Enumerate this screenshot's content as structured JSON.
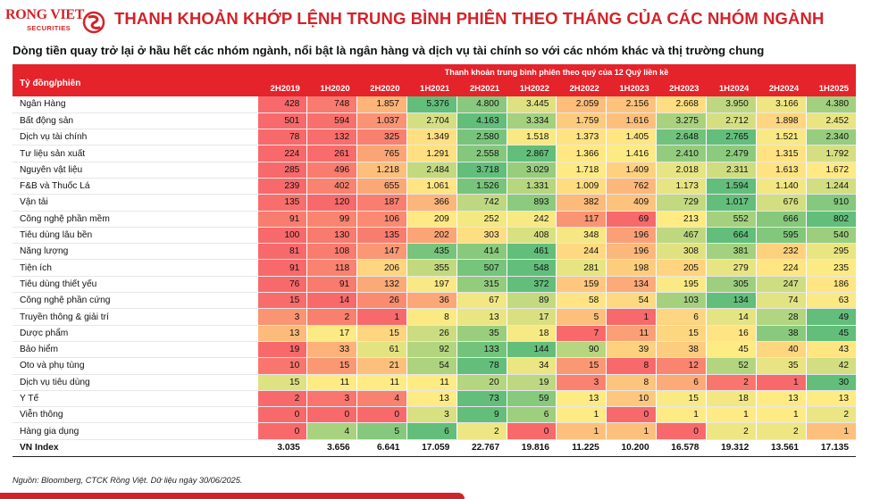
{
  "brand": {
    "logo_text": "RONG VIET",
    "logo_sub": "SECURITIES",
    "brand_color": "#d2232a"
  },
  "title": "THANH KHOẢN KHỚP LỆNH TRUNG BÌNH PHIÊN THEO THÁNG CỦA CÁC NHÓM NGÀNH",
  "subtitle": "Dòng tiền quay trở lại ở hầu hết các nhóm ngành, nổi bật là ngân hàng và dịch vụ tài chính so với các nhóm khác và thị trường chung",
  "source": "Nguồn: Bloomberg, CTCK Rồng Việt. Dữ liệu ngày 30/06/2025.",
  "chart_data": {
    "type": "heatmap",
    "row_header": "Tỷ đồng/phiên",
    "column_group_header": "Thanh khoản trung bình phiên theo quý của 12 Quý liền kề",
    "columns": [
      "2H2019",
      "1H2020",
      "2H2020",
      "1H2021",
      "2H2021",
      "1H2022",
      "2H2022",
      "1H2023",
      "2H2023",
      "1H2024",
      "2H2024",
      "1H2025"
    ],
    "rows": [
      {
        "name": "Ngân Hàng",
        "values": [
          428,
          748,
          1857,
          5376,
          4800,
          3445,
          2059,
          2156,
          2668,
          3950,
          3166,
          4380
        ],
        "labels": [
          "428",
          "748",
          "1.857",
          "5.376",
          "4.800",
          "3.445",
          "2.059",
          "2.156",
          "2.668",
          "3.950",
          "3.166",
          "4.380"
        ]
      },
      {
        "name": "Bất động sản",
        "values": [
          501,
          594,
          1037,
          2704,
          4163,
          3334,
          1759,
          1616,
          3275,
          2712,
          1898,
          2452
        ],
        "labels": [
          "501",
          "594",
          "1.037",
          "2.704",
          "4.163",
          "3.334",
          "1.759",
          "1.616",
          "3.275",
          "2.712",
          "1.898",
          "2.452"
        ]
      },
      {
        "name": "Dịch vụ tài chính",
        "values": [
          78,
          132,
          325,
          1349,
          2580,
          1518,
          1373,
          1405,
          2648,
          2765,
          1521,
          2340
        ],
        "labels": [
          "78",
          "132",
          "325",
          "1.349",
          "2.580",
          "1.518",
          "1.373",
          "1.405",
          "2.648",
          "2.765",
          "1.521",
          "2.340"
        ]
      },
      {
        "name": "Tư liệu sản xuất",
        "values": [
          224,
          261,
          765,
          1291,
          2558,
          2867,
          1366,
          1416,
          2410,
          2479,
          1315,
          1792
        ],
        "labels": [
          "224",
          "261",
          "765",
          "1.291",
          "2.558",
          "2.867",
          "1.366",
          "1.416",
          "2.410",
          "2.479",
          "1.315",
          "1.792"
        ]
      },
      {
        "name": "Nguyên vật liệu",
        "values": [
          285,
          496,
          1218,
          2484,
          3718,
          3029,
          1718,
          1409,
          2018,
          2311,
          1613,
          1672
        ],
        "labels": [
          "285",
          "496",
          "1.218",
          "2.484",
          "3.718",
          "3.029",
          "1.718",
          "1.409",
          "2.018",
          "2.311",
          "1.613",
          "1.672"
        ]
      },
      {
        "name": "F&B và Thuốc Lá",
        "values": [
          239,
          402,
          655,
          1061,
          1526,
          1331,
          1009,
          762,
          1173,
          1594,
          1140,
          1244
        ],
        "labels": [
          "239",
          "402",
          "655",
          "1.061",
          "1.526",
          "1.331",
          "1.009",
          "762",
          "1.173",
          "1.594",
          "1.140",
          "1.244"
        ]
      },
      {
        "name": "Vận tải",
        "values": [
          135,
          120,
          187,
          366,
          742,
          893,
          382,
          409,
          729,
          1017,
          676,
          910
        ],
        "labels": [
          "135",
          "120",
          "187",
          "366",
          "742",
          "893",
          "382",
          "409",
          "729",
          "1.017",
          "676",
          "910"
        ]
      },
      {
        "name": "Công nghệ phần mềm",
        "values": [
          91,
          99,
          106,
          209,
          252,
          242,
          117,
          69,
          213,
          552,
          666,
          802
        ],
        "labels": [
          "91",
          "99",
          "106",
          "209",
          "252",
          "242",
          "117",
          "69",
          "213",
          "552",
          "666",
          "802"
        ]
      },
      {
        "name": "Tiêu dùng lâu bền",
        "values": [
          100,
          130,
          135,
          202,
          303,
          408,
          348,
          196,
          467,
          664,
          595,
          540
        ],
        "labels": [
          "100",
          "130",
          "135",
          "202",
          "303",
          "408",
          "348",
          "196",
          "467",
          "664",
          "595",
          "540"
        ]
      },
      {
        "name": "Năng lượng",
        "values": [
          81,
          108,
          147,
          435,
          414,
          461,
          244,
          196,
          308,
          381,
          232,
          295
        ],
        "labels": [
          "81",
          "108",
          "147",
          "435",
          "414",
          "461",
          "244",
          "196",
          "308",
          "381",
          "232",
          "295"
        ]
      },
      {
        "name": "Tiện ích",
        "values": [
          91,
          118,
          206,
          355,
          507,
          548,
          281,
          198,
          205,
          279,
          224,
          235
        ],
        "labels": [
          "91",
          "118",
          "206",
          "355",
          "507",
          "548",
          "281",
          "198",
          "205",
          "279",
          "224",
          "235"
        ]
      },
      {
        "name": "Tiêu dùng thiết yếu",
        "values": [
          76,
          91,
          132,
          197,
          315,
          372,
          159,
          134,
          195,
          305,
          247,
          186
        ],
        "labels": [
          "76",
          "91",
          "132",
          "197",
          "315",
          "372",
          "159",
          "134",
          "195",
          "305",
          "247",
          "186"
        ]
      },
      {
        "name": "Công nghệ phần cứng",
        "values": [
          15,
          14,
          26,
          36,
          67,
          89,
          58,
          54,
          103,
          134,
          74,
          63
        ],
        "labels": [
          "15",
          "14",
          "26",
          "36",
          "67",
          "89",
          "58",
          "54",
          "103",
          "134",
          "74",
          "63"
        ]
      },
      {
        "name": "Truyền thông & giải trí",
        "values": [
          3,
          2,
          1,
          8,
          13,
          17,
          5,
          1,
          6,
          14,
          28,
          49
        ],
        "labels": [
          "3",
          "2",
          "1",
          "8",
          "13",
          "17",
          "5",
          "1",
          "6",
          "14",
          "28",
          "49"
        ]
      },
      {
        "name": "Dược phẩm",
        "values": [
          13,
          17,
          15,
          26,
          35,
          18,
          7,
          11,
          15,
          16,
          38,
          45
        ],
        "labels": [
          "13",
          "17",
          "15",
          "26",
          "35",
          "18",
          "7",
          "11",
          "15",
          "16",
          "38",
          "45"
        ]
      },
      {
        "name": "Bảo hiểm",
        "values": [
          19,
          33,
          61,
          92,
          133,
          144,
          90,
          39,
          38,
          45,
          40,
          43
        ],
        "labels": [
          "19",
          "33",
          "61",
          "92",
          "133",
          "144",
          "90",
          "39",
          "38",
          "45",
          "40",
          "43"
        ]
      },
      {
        "name": "Oto và phụ tùng",
        "values": [
          10,
          15,
          21,
          54,
          78,
          34,
          15,
          8,
          12,
          52,
          35,
          42
        ],
        "labels": [
          "10",
          "15",
          "21",
          "54",
          "78",
          "34",
          "15",
          "8",
          "12",
          "52",
          "35",
          "42"
        ]
      },
      {
        "name": "Dịch vụ tiêu dùng",
        "values": [
          15,
          11,
          11,
          11,
          20,
          19,
          3,
          8,
          6,
          2,
          1,
          30
        ],
        "labels": [
          "15",
          "11",
          "11",
          "11",
          "20",
          "19",
          "3",
          "8",
          "6",
          "2",
          "1",
          "30"
        ]
      },
      {
        "name": "Y Tế",
        "values": [
          2,
          3,
          4,
          13,
          73,
          59,
          13,
          10,
          15,
          18,
          13,
          13
        ],
        "labels": [
          "2",
          "3",
          "4",
          "13",
          "73",
          "59",
          "13",
          "10",
          "15",
          "18",
          "13",
          "13"
        ]
      },
      {
        "name": "Viễn thông",
        "values": [
          0,
          0,
          0,
          3,
          9,
          6,
          1,
          0,
          1,
          1,
          1,
          2
        ],
        "labels": [
          "0",
          "0",
          "0",
          "3",
          "9",
          "6",
          "1",
          "0",
          "1",
          "1",
          "1",
          "2"
        ]
      },
      {
        "name": "Hàng gia dụng",
        "values": [
          0,
          4,
          5,
          6,
          2,
          0,
          1,
          1,
          0,
          2,
          2,
          1
        ],
        "labels": [
          "0",
          "4",
          "5",
          "6",
          "2",
          "0",
          "1",
          "1",
          "0",
          "2",
          "2",
          "1"
        ]
      }
    ],
    "total_row": {
      "name": "VN Index",
      "labels": [
        "3.035",
        "3.656",
        "6.641",
        "17.059",
        "22.767",
        "19.816",
        "11.225",
        "10.200",
        "16.578",
        "19.312",
        "13.561",
        "17.135"
      ]
    },
    "color_scale": {
      "low": "#f8696b",
      "mid": "#ffeb84",
      "high": "#63be7b",
      "header_red": "#e4232b"
    }
  }
}
